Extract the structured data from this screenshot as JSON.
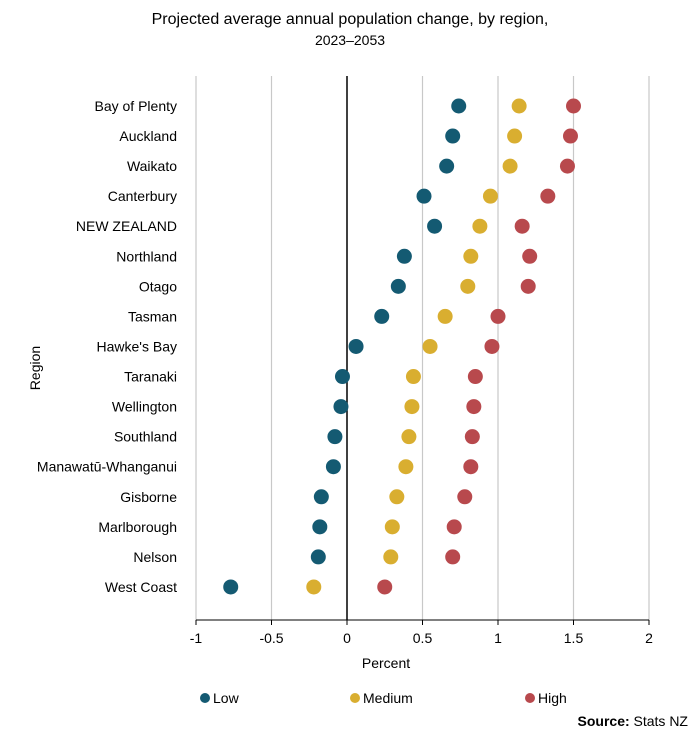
{
  "title_line1": "Projected average annual population change, by region,",
  "title_line2": "2023–2053",
  "source_label": "Source:",
  "source_text": "Stats NZ",
  "legend": [
    {
      "label": "Low",
      "color": "#145A72"
    },
    {
      "label": "Medium",
      "color": "#D9AE30"
    },
    {
      "label": "High",
      "color": "#B8494D"
    }
  ],
  "chart_data": {
    "type": "scatter",
    "title": "Projected average annual population change, by region, 2023–2053",
    "xlabel": "Percent",
    "ylabel": "Region",
    "xlim": [
      -1,
      2
    ],
    "xticks": [
      -1,
      -0.5,
      0,
      0.5,
      1,
      1.5,
      2
    ],
    "xtick_labels": [
      "-1",
      "-0.5",
      "0",
      "0.5",
      "1",
      "1.5",
      "2"
    ],
    "grid": "vertical",
    "legend_position": "bottom",
    "categories": [
      "Bay of Plenty",
      "Auckland",
      "Waikato",
      "Canterbury",
      "NEW ZEALAND",
      "Northland",
      "Otago",
      "Tasman",
      "Hawke's Bay",
      "Taranaki",
      "Wellington",
      "Southland",
      "Manawatū-Whanganui",
      "Gisborne",
      "Marlborough",
      "Nelson",
      "West Coast"
    ],
    "series": [
      {
        "name": "Low",
        "color": "#145A72",
        "values": [
          0.74,
          0.7,
          0.66,
          0.51,
          0.58,
          0.38,
          0.34,
          0.23,
          0.06,
          -0.03,
          -0.04,
          -0.08,
          -0.09,
          -0.17,
          -0.18,
          -0.19,
          -0.77
        ]
      },
      {
        "name": "Medium",
        "color": "#D9AE30",
        "values": [
          1.14,
          1.11,
          1.08,
          0.95,
          0.88,
          0.82,
          0.8,
          0.65,
          0.55,
          0.44,
          0.43,
          0.41,
          0.39,
          0.33,
          0.3,
          0.29,
          -0.22
        ]
      },
      {
        "name": "High",
        "color": "#B8494D",
        "values": [
          1.5,
          1.48,
          1.46,
          1.33,
          1.16,
          1.21,
          1.2,
          1.0,
          0.96,
          0.85,
          0.84,
          0.83,
          0.82,
          0.78,
          0.71,
          0.7,
          0.25
        ]
      }
    ]
  }
}
